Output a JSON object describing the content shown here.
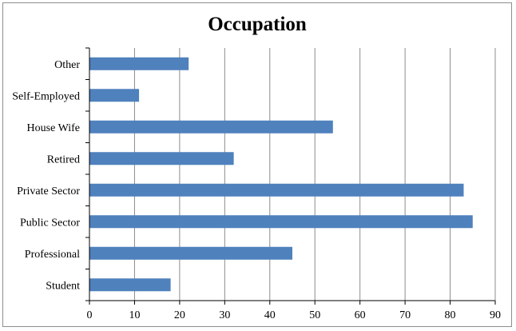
{
  "chart_data": {
    "type": "bar",
    "orientation": "horizontal",
    "title": "Occupation",
    "xlabel": "",
    "ylabel": "",
    "categories": [
      "Student",
      "Professional",
      "Public Sector",
      "Private Sector",
      "Retired",
      "House Wife",
      "Self-Employed",
      "Other"
    ],
    "values": [
      18,
      45,
      85,
      83,
      32,
      54,
      11,
      22
    ],
    "xlim": [
      0,
      90
    ],
    "xticks": [
      0,
      10,
      20,
      30,
      40,
      50,
      60,
      70,
      80,
      90
    ],
    "grid": "vertical",
    "legend": "none",
    "bar_color": "#4f81bd",
    "grid_color": "#8c8c8c"
  }
}
